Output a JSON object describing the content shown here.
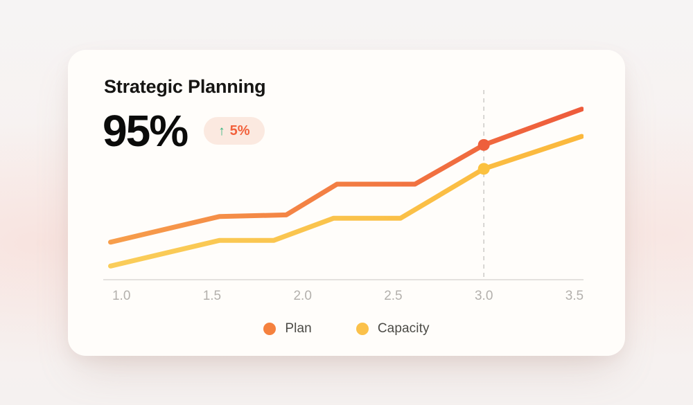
{
  "card": {
    "title": "Strategic Planning",
    "kpi_value": "95%",
    "badge": {
      "arrow": "↑",
      "delta": "5%",
      "bg": "#FBE9E0",
      "arrow_color": "#2FB57C",
      "delta_color": "#F2613C"
    }
  },
  "chart_data": {
    "type": "line",
    "title": "Strategic Planning",
    "xlabel": "",
    "ylabel": "",
    "x_ticks": [
      "1.0",
      "1.5",
      "2.0",
      "2.5",
      "3.0",
      "3.5"
    ],
    "xlim": [
      0.9,
      3.55
    ],
    "ylim": [
      0,
      112
    ],
    "y_units": "relative (no y-axis labels shown in chart)",
    "grid": false,
    "legend_position": "bottom",
    "highlight_x": 3.0,
    "axis_color": "#DBD8D5",
    "tick_color": "#B3B0AC",
    "dashed_line_color": "#CFCCC9",
    "series": [
      {
        "name": "Plan",
        "color_start": "#F79E4B",
        "color_end": "#EE5B3B",
        "dot_color": "#EE5F3C",
        "x": [
          0.94,
          1.54,
          1.91,
          2.19,
          2.62,
          3.0,
          3.54
        ],
        "y": [
          22,
          37,
          38,
          56,
          56,
          79,
          100
        ]
      },
      {
        "name": "Capacity",
        "color_start": "#FACD5A",
        "color_end": "#FBB83C",
        "dot_color": "#FBC13F",
        "x": [
          0.94,
          1.54,
          1.84,
          2.17,
          2.54,
          3.0,
          3.54
        ],
        "y": [
          8,
          23,
          23,
          36,
          36,
          65,
          84
        ]
      }
    ]
  },
  "legend": {
    "items": [
      {
        "label": "Plan",
        "color": "#F5813E"
      },
      {
        "label": "Capacity",
        "color": "#FBC14A"
      }
    ]
  }
}
